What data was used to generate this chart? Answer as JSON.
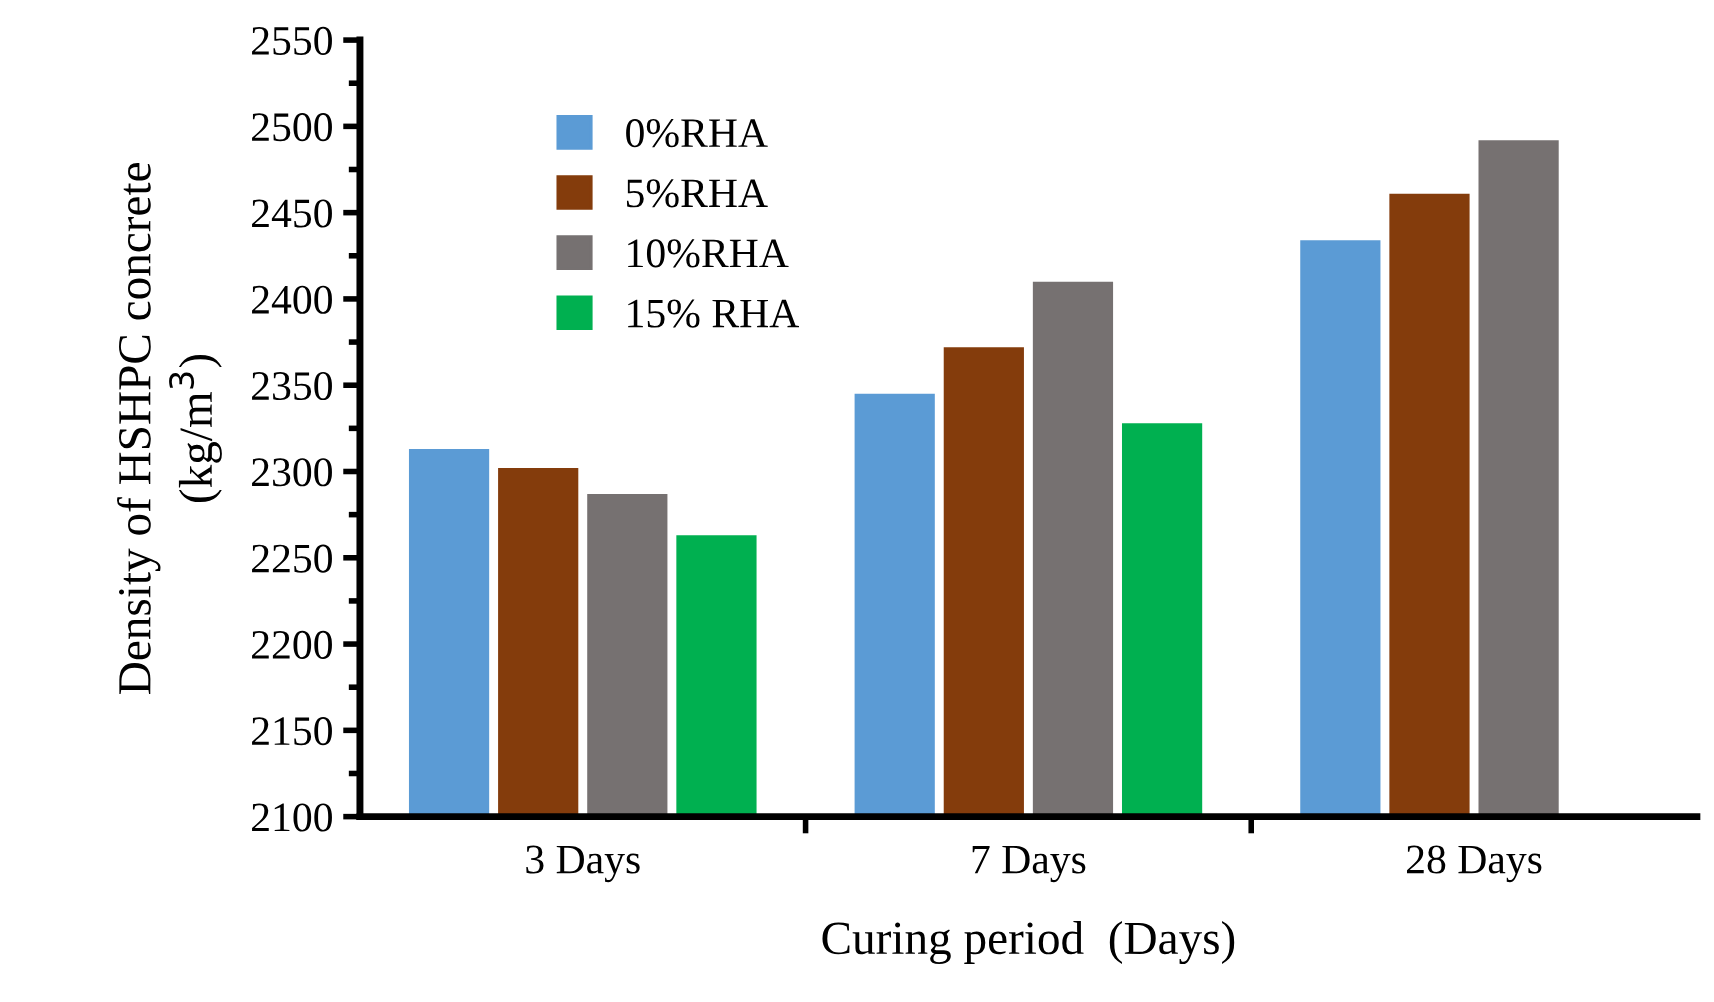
{
  "chart_data": {
    "type": "bar",
    "xlabel": "Curing period  (Days)",
    "ylabel": "Density of HSHPC concrete\n(kg/m$^{3}$)",
    "categories": [
      "3 Days",
      "7 Days",
      "28 Days"
    ],
    "series": [
      {
        "name": "0%RHA",
        "color": "#5b9bd5",
        "values": [
          2313,
          2345,
          2434
        ]
      },
      {
        "name": "5%RHA",
        "color": "#843c0c",
        "values": [
          2302,
          2372,
          2461
        ]
      },
      {
        "name": "10%RHA",
        "color": "#767171",
        "values": [
          2287,
          2410,
          2492
        ]
      },
      {
        "name": "15% RHA",
        "color": "#00b050",
        "values": [
          2263,
          2328,
          null
        ]
      }
    ],
    "ylim": [
      2100,
      2550
    ],
    "yticks": [
      2100,
      2150,
      2200,
      2250,
      2300,
      2350,
      2400,
      2450,
      2500,
      2550
    ],
    "grid": false,
    "legend": "top left"
  }
}
